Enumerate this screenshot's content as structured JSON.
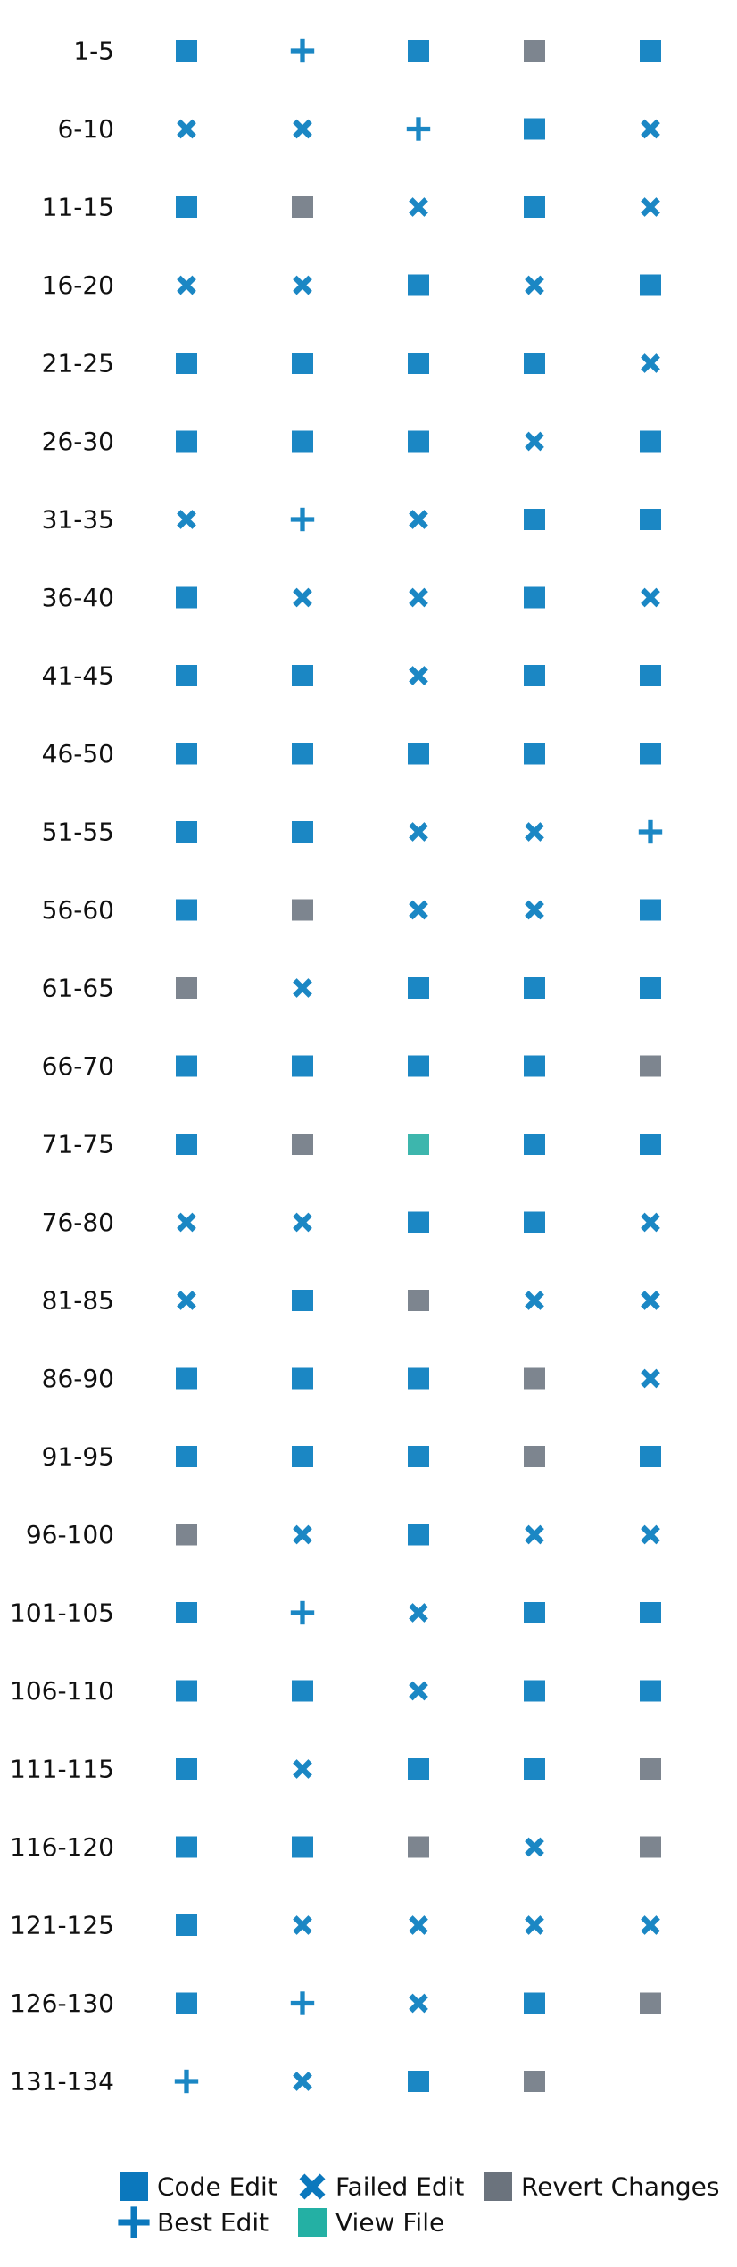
{
  "chart_data": {
    "type": "scatter",
    "title": "",
    "xlabel": "",
    "ylabel": "",
    "grid": false,
    "legend_position": "bottom",
    "colors": {
      "code_edit": "#1b87c4",
      "failed_edit": "#1b87c4",
      "best_edit": "#1b87c4",
      "view_file": "#3db6ad",
      "revert_changes": "#7d858f",
      "legend_code_edit": "#0b78bd",
      "legend_failed_edit": "#0b78bd",
      "legend_best_edit": "#0b78bd",
      "legend_view_file": "#24b0a4",
      "legend_revert_changes": "#6b737d"
    },
    "legend": [
      {
        "key": "code_edit",
        "label": "Code Edit",
        "marker": "square-icon"
      },
      {
        "key": "failed_edit",
        "label": "Failed Edit",
        "marker": "x-icon"
      },
      {
        "key": "revert_changes",
        "label": "Revert Changes",
        "marker": "square-icon"
      },
      {
        "key": "best_edit",
        "label": "Best Edit",
        "marker": "plus-icon"
      },
      {
        "key": "view_file",
        "label": "View File",
        "marker": "square-icon"
      }
    ],
    "rows": [
      {
        "label": "1-5",
        "steps": [
          "code_edit",
          "best_edit",
          "code_edit",
          "revert_changes",
          "code_edit"
        ]
      },
      {
        "label": "6-10",
        "steps": [
          "failed_edit",
          "failed_edit",
          "best_edit",
          "code_edit",
          "failed_edit"
        ]
      },
      {
        "label": "11-15",
        "steps": [
          "code_edit",
          "revert_changes",
          "failed_edit",
          "code_edit",
          "failed_edit"
        ]
      },
      {
        "label": "16-20",
        "steps": [
          "failed_edit",
          "failed_edit",
          "code_edit",
          "failed_edit",
          "code_edit"
        ]
      },
      {
        "label": "21-25",
        "steps": [
          "code_edit",
          "code_edit",
          "code_edit",
          "code_edit",
          "failed_edit"
        ]
      },
      {
        "label": "26-30",
        "steps": [
          "code_edit",
          "code_edit",
          "code_edit",
          "failed_edit",
          "code_edit"
        ]
      },
      {
        "label": "31-35",
        "steps": [
          "failed_edit",
          "best_edit",
          "failed_edit",
          "code_edit",
          "code_edit"
        ]
      },
      {
        "label": "36-40",
        "steps": [
          "code_edit",
          "failed_edit",
          "failed_edit",
          "code_edit",
          "failed_edit"
        ]
      },
      {
        "label": "41-45",
        "steps": [
          "code_edit",
          "code_edit",
          "failed_edit",
          "code_edit",
          "code_edit"
        ]
      },
      {
        "label": "46-50",
        "steps": [
          "code_edit",
          "code_edit",
          "code_edit",
          "code_edit",
          "code_edit"
        ]
      },
      {
        "label": "51-55",
        "steps": [
          "code_edit",
          "code_edit",
          "failed_edit",
          "failed_edit",
          "best_edit"
        ]
      },
      {
        "label": "56-60",
        "steps": [
          "code_edit",
          "revert_changes",
          "failed_edit",
          "failed_edit",
          "code_edit"
        ]
      },
      {
        "label": "61-65",
        "steps": [
          "revert_changes",
          "failed_edit",
          "code_edit",
          "code_edit",
          "code_edit"
        ]
      },
      {
        "label": "66-70",
        "steps": [
          "code_edit",
          "code_edit",
          "code_edit",
          "code_edit",
          "revert_changes"
        ]
      },
      {
        "label": "71-75",
        "steps": [
          "code_edit",
          "revert_changes",
          "view_file",
          "code_edit",
          "code_edit"
        ]
      },
      {
        "label": "76-80",
        "steps": [
          "failed_edit",
          "failed_edit",
          "code_edit",
          "code_edit",
          "failed_edit"
        ]
      },
      {
        "label": "81-85",
        "steps": [
          "failed_edit",
          "code_edit",
          "revert_changes",
          "failed_edit",
          "failed_edit"
        ]
      },
      {
        "label": "86-90",
        "steps": [
          "code_edit",
          "code_edit",
          "code_edit",
          "revert_changes",
          "failed_edit"
        ]
      },
      {
        "label": "91-95",
        "steps": [
          "code_edit",
          "code_edit",
          "code_edit",
          "revert_changes",
          "code_edit"
        ]
      },
      {
        "label": "96-100",
        "steps": [
          "revert_changes",
          "failed_edit",
          "code_edit",
          "failed_edit",
          "failed_edit"
        ]
      },
      {
        "label": "101-105",
        "steps": [
          "code_edit",
          "best_edit",
          "failed_edit",
          "code_edit",
          "code_edit"
        ]
      },
      {
        "label": "106-110",
        "steps": [
          "code_edit",
          "code_edit",
          "failed_edit",
          "code_edit",
          "code_edit"
        ]
      },
      {
        "label": "111-115",
        "steps": [
          "code_edit",
          "failed_edit",
          "code_edit",
          "code_edit",
          "revert_changes"
        ]
      },
      {
        "label": "116-120",
        "steps": [
          "code_edit",
          "code_edit",
          "revert_changes",
          "failed_edit",
          "revert_changes"
        ]
      },
      {
        "label": "121-125",
        "steps": [
          "code_edit",
          "failed_edit",
          "failed_edit",
          "failed_edit",
          "failed_edit"
        ]
      },
      {
        "label": "126-130",
        "steps": [
          "code_edit",
          "best_edit",
          "failed_edit",
          "code_edit",
          "revert_changes"
        ]
      },
      {
        "label": "131-134",
        "steps": [
          "best_edit",
          "failed_edit",
          "code_edit",
          "revert_changes"
        ]
      }
    ]
  }
}
